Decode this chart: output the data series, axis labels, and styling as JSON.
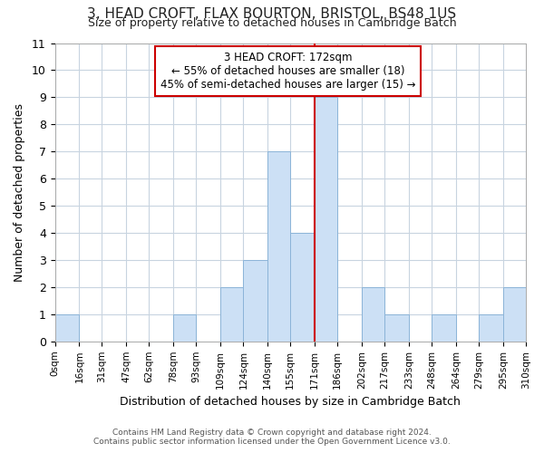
{
  "title": "3, HEAD CROFT, FLAX BOURTON, BRISTOL, BS48 1US",
  "subtitle": "Size of property relative to detached houses in Cambridge Batch",
  "xlabel": "Distribution of detached houses by size in Cambridge Batch",
  "ylabel": "Number of detached properties",
  "bin_labels": [
    "0sqm",
    "16sqm",
    "31sqm",
    "47sqm",
    "62sqm",
    "78sqm",
    "93sqm",
    "109sqm",
    "124sqm",
    "140sqm",
    "155sqm",
    "171sqm",
    "186sqm",
    "202sqm",
    "217sqm",
    "233sqm",
    "248sqm",
    "264sqm",
    "279sqm",
    "295sqm",
    "310sqm"
  ],
  "bar_values": [
    1,
    0,
    0,
    0,
    0,
    1,
    0,
    2,
    3,
    7,
    4,
    9,
    0,
    2,
    1,
    0,
    1,
    0,
    1,
    2
  ],
  "bar_color": "#cce0f5",
  "bar_edgecolor": "#8cb4d8",
  "highlight_bin_index": 11,
  "ylim": [
    0,
    11
  ],
  "yticks": [
    0,
    1,
    2,
    3,
    4,
    5,
    6,
    7,
    8,
    9,
    10,
    11
  ],
  "annotation_title": "3 HEAD CROFT: 172sqm",
  "annotation_line1": "← 55% of detached houses are smaller (18)",
  "annotation_line2": "45% of semi-detached houses are larger (15) →",
  "annotation_box_color": "#ffffff",
  "annotation_border_color": "#cc0000",
  "footnote1": "Contains HM Land Registry data © Crown copyright and database right 2024.",
  "footnote2": "Contains public sector information licensed under the Open Government Licence v3.0.",
  "background_color": "#ffffff",
  "grid_color": "#c8d4e0"
}
